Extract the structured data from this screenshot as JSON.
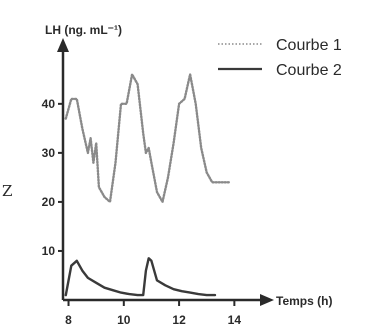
{
  "side_text": "Z",
  "chart_data": {
    "type": "line",
    "ylabel": "LH (ng. mL⁻¹)",
    "xlabel": "Temps (h)",
    "x_ticks": [
      8,
      10,
      12,
      14
    ],
    "y_ticks": [
      10,
      20,
      30,
      40
    ],
    "xlim": [
      7.8,
      15
    ],
    "ylim": [
      0,
      52
    ],
    "legend_position": "top-right",
    "series": [
      {
        "name": "Courbe 1",
        "style": "dotted",
        "color": "#8a8a8a",
        "x": [
          7.9,
          8.1,
          8.3,
          8.5,
          8.7,
          8.8,
          8.9,
          9.0,
          9.1,
          9.3,
          9.5,
          9.7,
          9.9,
          10.1,
          10.3,
          10.5,
          10.7,
          10.8,
          10.9,
          11.0,
          11.2,
          11.4,
          11.6,
          11.8,
          12.0,
          12.2,
          12.4,
          12.6,
          12.8,
          13.0,
          13.2,
          13.4,
          13.6,
          13.8
        ],
        "y": [
          37,
          41,
          41,
          35,
          30,
          33,
          28,
          32,
          23,
          21,
          20,
          28,
          40,
          40,
          46,
          44,
          34,
          30,
          31,
          28,
          22,
          20,
          25,
          32,
          40,
          41,
          46,
          40,
          31,
          26,
          24,
          24,
          24,
          24
        ]
      },
      {
        "name": "Courbe 2",
        "style": "solid",
        "color": "#3a3a3a",
        "x": [
          7.9,
          8.1,
          8.3,
          8.5,
          8.7,
          9.0,
          9.3,
          9.6,
          9.9,
          10.2,
          10.5,
          10.7,
          10.8,
          10.9,
          11.0,
          11.2,
          11.5,
          11.8,
          12.1,
          12.4,
          12.7,
          13.0,
          13.3
        ],
        "y": [
          1,
          7,
          8,
          6,
          4.5,
          3.5,
          2.5,
          2.0,
          1.5,
          1.2,
          1.0,
          1.0,
          6,
          8.5,
          8,
          4,
          3,
          2.2,
          1.8,
          1.5,
          1.2,
          1.0,
          1.0
        ]
      }
    ]
  }
}
